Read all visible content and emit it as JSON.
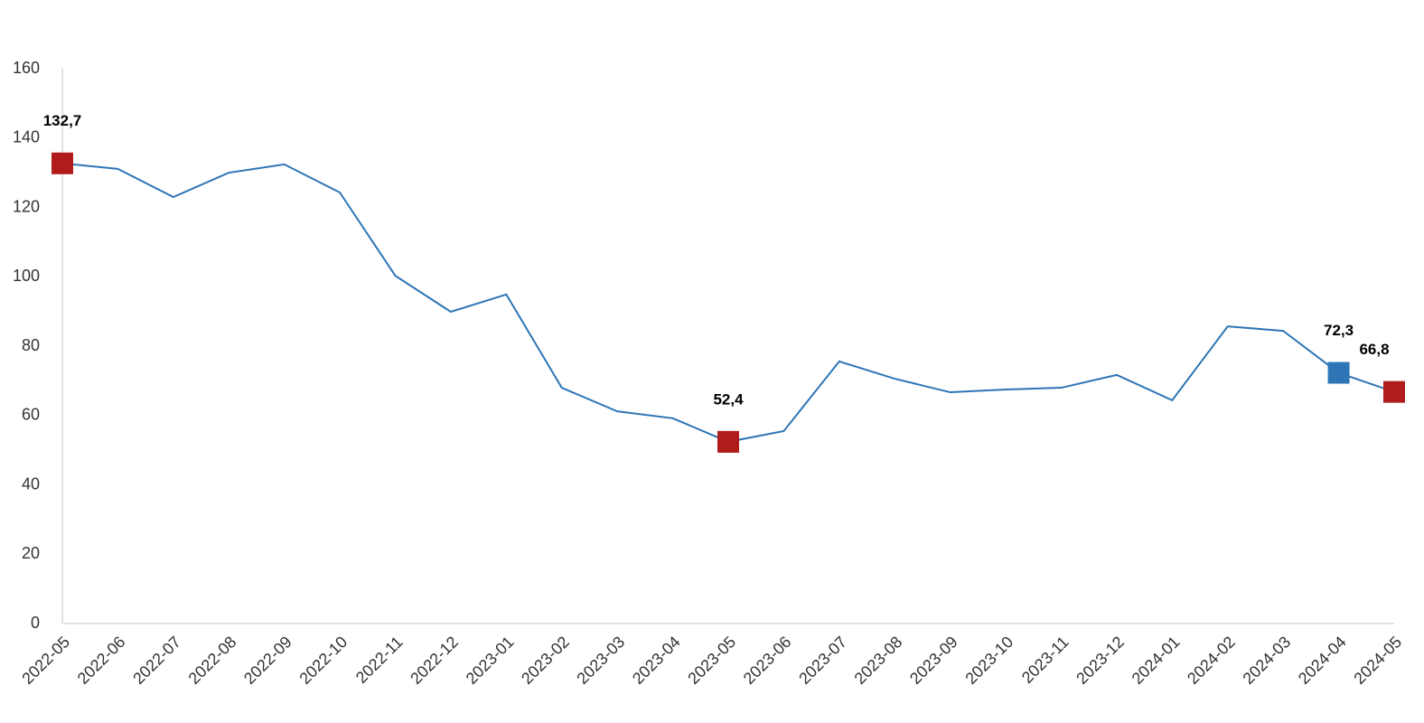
{
  "chart_data": {
    "type": "line",
    "categories": [
      "2022-05",
      "2022-06",
      "2022-07",
      "2022-08",
      "2022-09",
      "2022-10",
      "2022-11",
      "2022-12",
      "2023-01",
      "2023-02",
      "2023-03",
      "2023-04",
      "2023-05",
      "2023-06",
      "2023-07",
      "2023-08",
      "2023-09",
      "2023-10",
      "2023-11",
      "2023-12",
      "2024-01",
      "2024-02",
      "2024-03",
      "2024-04",
      "2024-05"
    ],
    "series": [
      {
        "color": "#2e75b6",
        "values": [
          132.7,
          131.1,
          123.0,
          130.0,
          132.4,
          124.3,
          100.3,
          89.9,
          94.9,
          68.0,
          61.2,
          59.2,
          52.4,
          55.5,
          75.6,
          70.6,
          66.7,
          67.5,
          68.0,
          71.7,
          64.4,
          85.7,
          84.4,
          72.3,
          66.8
        ],
        "value_labels": [
          "132,7",
          null,
          null,
          null,
          null,
          null,
          null,
          null,
          null,
          null,
          null,
          null,
          "52,4",
          null,
          null,
          null,
          null,
          null,
          null,
          null,
          null,
          null,
          null,
          "72,3",
          "66,8"
        ],
        "marker_colors": [
          "#b01c1c",
          null,
          null,
          null,
          null,
          null,
          null,
          null,
          null,
          null,
          null,
          null,
          "#b01c1c",
          null,
          null,
          null,
          null,
          null,
          null,
          null,
          null,
          null,
          null,
          "#2e75b6",
          "#b01c1c"
        ]
      }
    ],
    "ylim": [
      0,
      160
    ],
    "yticks": [
      0,
      20,
      40,
      60,
      80,
      100,
      120,
      140,
      160
    ],
    "grid": false
  }
}
